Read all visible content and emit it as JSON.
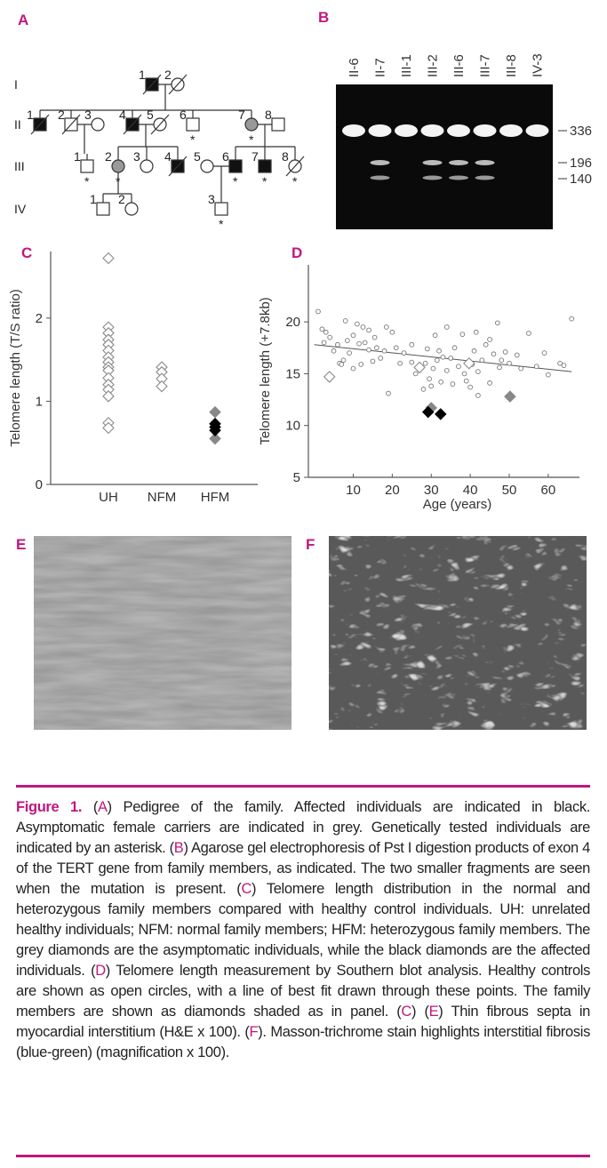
{
  "panel_labels": [
    "A",
    "B",
    "C",
    "D",
    "E",
    "F"
  ],
  "pedigree": {
    "generations": [
      "I",
      "II",
      "III",
      "IV"
    ],
    "labels": {
      "I": [
        "1",
        "2"
      ],
      "II": [
        "1",
        "2",
        "3",
        "4",
        "5",
        "6",
        "7",
        "8"
      ],
      "III": [
        "1",
        "2",
        "3",
        "4",
        "5",
        "6",
        "7",
        "8"
      ],
      "IV": [
        "1",
        "2",
        "3"
      ]
    },
    "asterisk": "*"
  },
  "gel": {
    "lanes": [
      "II-6",
      "II-7",
      "III-1",
      "III-2",
      "III-6",
      "III-7",
      "III-8",
      "IV-3"
    ],
    "sizes": [
      336,
      196,
      140
    ]
  },
  "chart_data": [
    {
      "type": "scatter",
      "ylabel": "Telomere length (T/S ratio)",
      "categories": [
        "UH",
        "NFM",
        "HFM"
      ],
      "ylim": [
        0,
        2.8
      ],
      "yticks": [
        0,
        1,
        2
      ],
      "series": [
        {
          "color": "#ffffff",
          "marker": "D",
          "values": [
            [
              2.72,
              1.89,
              1.82,
              1.74,
              1.68,
              1.61,
              1.53,
              1.47,
              1.41,
              1.37,
              1.28,
              1.2,
              1.14,
              1.06,
              0.74,
              0.68
            ],
            [
              1.41,
              1.35,
              1.27,
              1.18
            ],
            []
          ]
        },
        {
          "color": "#888888",
          "marker": "D",
          "values": [
            [],
            [],
            [
              0.87,
              0.55
            ]
          ]
        },
        {
          "color": "#000000",
          "marker": "D",
          "values": [
            [],
            [],
            [
              0.73,
              0.69,
              0.65
            ]
          ]
        }
      ]
    },
    {
      "type": "scatter",
      "xlabel": "Age (years)",
      "ylabel": "Telomere length (+7.8kb)",
      "xlim": [
        -1.5,
        68
      ],
      "xticks": [
        10,
        20,
        30,
        40,
        50,
        60
      ],
      "ylim": [
        5,
        25.5
      ],
      "yticks": [
        5,
        10,
        15,
        20
      ],
      "series": [
        {
          "color": "#ffffff",
          "marker": "o",
          "x": [
            1,
            2,
            2.5,
            3,
            4,
            5,
            6,
            6.5,
            7,
            7.5,
            8,
            8.5,
            9,
            10,
            10,
            11,
            11.5,
            12,
            12.5,
            13,
            14,
            14,
            15,
            15.5,
            16,
            17,
            18,
            18.5,
            19,
            20,
            21,
            22,
            23,
            25,
            25,
            26,
            28,
            28.5,
            29,
            29.5,
            30,
            30.5,
            31,
            31.5,
            32,
            32.5,
            33,
            34,
            34,
            35,
            35.5,
            36,
            37,
            38,
            38.5,
            39,
            39.5,
            40,
            40.5,
            41,
            41.5,
            42,
            42,
            43,
            44,
            45,
            45,
            46,
            47,
            47.5,
            48,
            49,
            50,
            52,
            53,
            55,
            57,
            59,
            60,
            63,
            64,
            66
          ],
          "values": [
            21,
            19.3,
            18,
            19,
            18.5,
            17.2,
            17.8,
            16,
            15.9,
            16.3,
            20.1,
            18.2,
            17,
            15.5,
            18.7,
            19.8,
            17.9,
            15.9,
            19.5,
            18,
            17.3,
            19.2,
            16.2,
            18.5,
            17.5,
            16.5,
            17.2,
            19.5,
            13.1,
            19,
            17.5,
            16,
            17,
            17.8,
            16.1,
            15,
            13.5,
            16,
            17.4,
            14.5,
            13.8,
            15.5,
            18.7,
            16.3,
            17.2,
            14.2,
            16.6,
            15.3,
            19.5,
            16.5,
            14,
            17.5,
            15.7,
            18.8,
            15,
            14.3,
            16.1,
            13.7,
            15.9,
            17.2,
            19,
            12.9,
            15.2,
            16.3,
            17.8,
            18.3,
            14.1,
            16.9,
            19.9,
            15.6,
            16.3,
            17.1,
            16,
            16.8,
            15.5,
            18.9,
            15.7,
            17,
            14.9,
            16,
            15.8,
            20.3
          ]
        },
        {
          "color": "#ffffff",
          "marker": "D",
          "x": [
            3.9,
            27,
            39.7
          ],
          "values": [
            14.7,
            15.6,
            16
          ]
        },
        {
          "color": "#888888",
          "marker": "D",
          "x": [
            30,
            50.2
          ],
          "values": [
            11.7,
            12.8
          ]
        },
        {
          "color": "#000000",
          "marker": "D",
          "x": [
            29.2,
            32.4
          ],
          "values": [
            11.3,
            11.1
          ]
        }
      ],
      "fit": {
        "x": [
          0,
          66
        ],
        "values": [
          17.8,
          15.2
        ]
      }
    }
  ],
  "caption": [
    "Figure 1.",
    " (",
    "A",
    ") Pedigree of the family. Affected individuals are indicated in black. Asymptomatic female carriers are indicated in grey. Genetically tested individuals are indicated by an asterisk. (",
    "B",
    ") Agarose gel electrophoresis of Pst I digestion products of exon 4 of the TERT gene from family members, as indicated. The two smaller fragments are seen when the mutation is present. (",
    "C",
    ") Telomere length distribution in the normal and heterozygous family members compared with healthy control individuals. UH: unrelated healthy individuals; NFM: normal family members; HFM: heterozygous family members. The grey diamonds are the asymptomatic individuals, while the black diamonds are the affected individuals. (",
    "D",
    ") Telomere length measurement by Southern blot analysis. Healthy controls are shown as open circles, with a line of best fit drawn through these points. The family members are shown as diamonds shaded as in panel. (",
    "C",
    ") (",
    "E",
    ") Thin fibrous septa in myocardial interstitium  (H&E x 100). (",
    "F",
    "). Masson-trichrome stain highlights interstitial fibrosis (blue-green) (magnification x 100)."
  ]
}
